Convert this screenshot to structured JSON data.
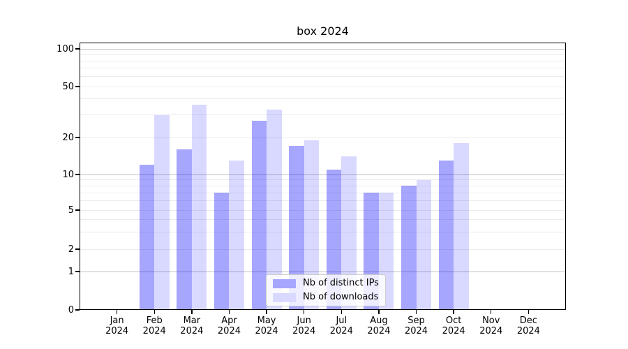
{
  "title": "box 2024",
  "chart_data": {
    "type": "bar",
    "title": "box 2024",
    "categories": [
      "Jan 2024",
      "Feb 2024",
      "Mar 2024",
      "Apr 2024",
      "May 2024",
      "Jun 2024",
      "Jul 2024",
      "Aug 2024",
      "Sep 2024",
      "Oct 2024",
      "Nov 2024",
      "Dec 2024"
    ],
    "series": [
      {
        "name": "Nb of distinct IPs",
        "color": "rgba(0,0,255,0.35)",
        "color_hex_on_white": "#a6a6ff",
        "values": [
          0,
          12,
          16,
          7,
          27,
          17,
          11,
          7,
          8,
          13,
          0,
          0
        ]
      },
      {
        "name": "Nb of downloads",
        "color": "rgba(0,0,255,0.15)",
        "color_hex_on_white": "#d9d9ff",
        "values": [
          0,
          30,
          36,
          13,
          33,
          19,
          14,
          7,
          9,
          18,
          0,
          0
        ]
      }
    ],
    "xlabel": "",
    "ylabel": "",
    "y_axis": {
      "scale": "log (with 0 baseline)",
      "ticks": [
        0,
        1,
        2,
        5,
        10,
        20,
        50,
        100
      ],
      "major_gridlines": [
        1,
        10,
        100
      ],
      "minor_gridlines": [
        2,
        3,
        4,
        5,
        6,
        7,
        8,
        9,
        20,
        30,
        40,
        50,
        60,
        70,
        80,
        90
      ],
      "ylim": [
        0,
        100
      ],
      "grid": true
    },
    "legend": {
      "position": "lower center",
      "entries": [
        "Nb of distinct IPs",
        "Nb of downloads"
      ]
    }
  }
}
